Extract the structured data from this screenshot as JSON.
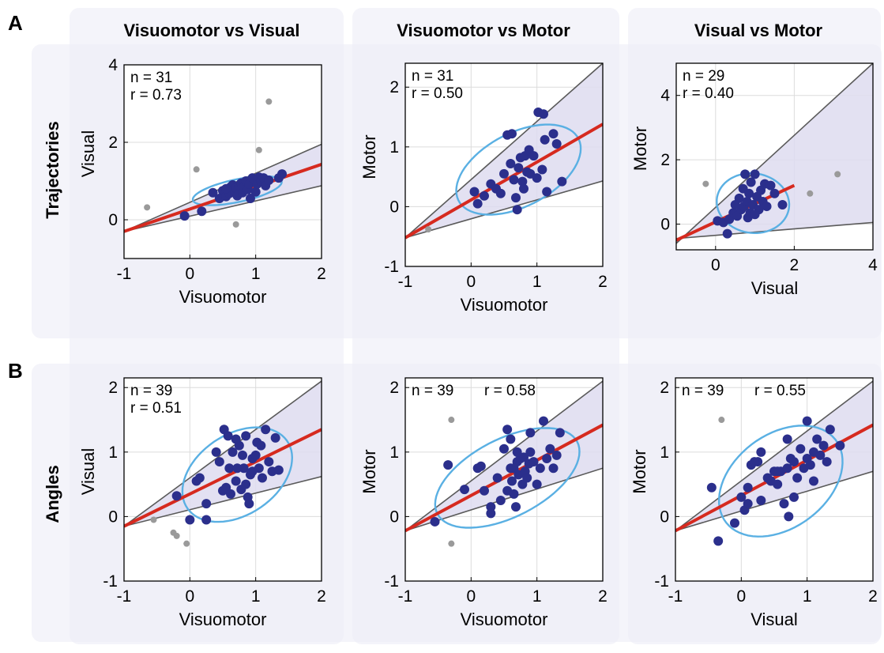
{
  "panels": [
    "A",
    "B"
  ],
  "columns": [
    "Visuomotor vs Visual",
    "Visuomotor vs Motor",
    "Visual vs Motor"
  ],
  "rows": [
    "Trajectories",
    "Angles"
  ],
  "colors": {
    "inlier": "#2b2f8c",
    "outlier": "#9a9a9a",
    "fit": "#d62a1f",
    "ellipse": "#5ab0e3",
    "wedge": "#dedcf0",
    "bound": "#5a5a5a",
    "grid": "#dcdcdc",
    "band": "#ecedf7"
  },
  "chart_data": [
    {
      "type": "scatter",
      "row": "Trajectories",
      "column": "Visuomotor vs Visual",
      "xlabel": "Visuomotor",
      "ylabel": "Visual",
      "xlim": [
        -1,
        2
      ],
      "ylim": [
        -1,
        4
      ],
      "xticks": [
        -1,
        0,
        1,
        2
      ],
      "yticks": [
        0,
        2,
        4
      ],
      "grid": true,
      "n": "n = 31",
      "r": "r = 0.73",
      "stat_layout": "two-line",
      "fit": {
        "x": [
          -1,
          2
        ],
        "y": [
          -0.3,
          1.43
        ]
      },
      "bounds": [
        {
          "x": [
            -1,
            2
          ],
          "y": [
            -0.3,
            1.95
          ]
        },
        {
          "x": [
            -1,
            2
          ],
          "y": [
            -0.3,
            0.88
          ]
        }
      ],
      "ellipse": {
        "cx": 0.72,
        "cy": 0.75,
        "rx": 0.72,
        "ry": 0.28,
        "angle_deg": 22
      },
      "inliers": [
        [
          -0.08,
          0.1
        ],
        [
          0.18,
          0.22
        ],
        [
          0.35,
          0.7
        ],
        [
          0.45,
          0.55
        ],
        [
          0.5,
          0.75
        ],
        [
          0.55,
          0.6
        ],
        [
          0.6,
          0.68
        ],
        [
          0.62,
          0.85
        ],
        [
          0.65,
          0.9
        ],
        [
          0.68,
          0.75
        ],
        [
          0.7,
          0.82
        ],
        [
          0.72,
          0.62
        ],
        [
          0.75,
          0.88
        ],
        [
          0.78,
          0.95
        ],
        [
          0.8,
          0.7
        ],
        [
          0.82,
          0.85
        ],
        [
          0.85,
          1.0
        ],
        [
          0.88,
          0.78
        ],
        [
          0.9,
          0.92
        ],
        [
          0.92,
          0.55
        ],
        [
          0.95,
          1.08
        ],
        [
          1.0,
          0.72
        ],
        [
          1.02,
          0.92
        ],
        [
          1.05,
          1.1
        ],
        [
          1.08,
          1.0
        ],
        [
          1.12,
          1.08
        ],
        [
          1.15,
          0.88
        ],
        [
          1.2,
          1.02
        ],
        [
          1.35,
          1.08
        ],
        [
          1.4,
          1.18
        ],
        [
          0.55,
          0.8
        ]
      ],
      "outliers": [
        [
          -0.65,
          0.32
        ],
        [
          0.1,
          1.3
        ],
        [
          0.7,
          -0.12
        ],
        [
          1.05,
          1.8
        ],
        [
          1.2,
          3.05
        ]
      ]
    },
    {
      "type": "scatter",
      "row": "Trajectories",
      "column": "Visuomotor vs Motor",
      "xlabel": "Visuomotor",
      "ylabel": "Motor",
      "xlim": [
        -1,
        2
      ],
      "ylim": [
        -1,
        2.4
      ],
      "xticks": [
        -1,
        0,
        1,
        2
      ],
      "yticks": [
        -1,
        0,
        1,
        2
      ],
      "grid": true,
      "n": "n = 31",
      "r": "r = 0.50",
      "stat_layout": "two-line",
      "fit": {
        "x": [
          -1,
          2
        ],
        "y": [
          -0.52,
          1.38
        ]
      },
      "bounds": [
        {
          "x": [
            -1,
            2
          ],
          "y": [
            -0.52,
            2.4
          ]
        },
        {
          "x": [
            -1,
            2
          ],
          "y": [
            -0.52,
            0.43
          ]
        }
      ],
      "ellipse": {
        "cx": 0.72,
        "cy": 0.62,
        "rx": 1.05,
        "ry": 0.6,
        "angle_deg": 32
      },
      "inliers": [
        [
          0.05,
          0.25
        ],
        [
          0.1,
          0.05
        ],
        [
          0.2,
          0.18
        ],
        [
          0.3,
          0.38
        ],
        [
          0.38,
          0.3
        ],
        [
          0.45,
          0.22
        ],
        [
          0.5,
          0.55
        ],
        [
          0.55,
          1.2
        ],
        [
          0.6,
          0.72
        ],
        [
          0.62,
          1.22
        ],
        [
          0.65,
          0.45
        ],
        [
          0.68,
          0.15
        ],
        [
          0.7,
          -0.05
        ],
        [
          0.72,
          0.65
        ],
        [
          0.75,
          0.82
        ],
        [
          0.78,
          0.42
        ],
        [
          0.8,
          0.3
        ],
        [
          0.82,
          0.85
        ],
        [
          0.85,
          0.58
        ],
        [
          0.88,
          0.95
        ],
        [
          0.9,
          0.55
        ],
        [
          0.95,
          0.85
        ],
        [
          1.0,
          0.48
        ],
        [
          1.02,
          1.58
        ],
        [
          1.08,
          0.62
        ],
        [
          1.1,
          1.55
        ],
        [
          1.15,
          0.25
        ],
        [
          1.25,
          1.22
        ],
        [
          1.3,
          1.05
        ],
        [
          1.38,
          0.42
        ],
        [
          1.12,
          1.12
        ]
      ],
      "outliers": [
        [
          -0.65,
          -0.38
        ]
      ]
    },
    {
      "type": "scatter",
      "row": "Trajectories",
      "column": "Visual vs Motor",
      "xlabel": "Visual",
      "ylabel": "Motor",
      "xlim": [
        -1,
        4
      ],
      "ylim": [
        -0.8,
        5
      ],
      "xticks": [
        0,
        2,
        4
      ],
      "yticks": [
        0,
        2,
        4
      ],
      "grid": true,
      "n": "n = 29",
      "r": "r = 0.40",
      "stat_layout": "two-line",
      "fit": {
        "x": [
          -1,
          2
        ],
        "y": [
          -0.5,
          1.2
        ]
      },
      "bounds": [
        {
          "x": [
            -1,
            4
          ],
          "y": [
            -0.6,
            5
          ]
        },
        {
          "x": [
            -1,
            4
          ],
          "y": [
            -0.45,
            0.05
          ]
        }
      ],
      "ellipse": {
        "cx": 0.95,
        "cy": 0.65,
        "rx": 0.9,
        "ry": 0.95,
        "angle_deg": 40
      },
      "inliers": [
        [
          0.05,
          0.1
        ],
        [
          0.2,
          0.05
        ],
        [
          0.3,
          -0.3
        ],
        [
          0.35,
          0.15
        ],
        [
          0.45,
          0.35
        ],
        [
          0.55,
          0.25
        ],
        [
          0.6,
          0.8
        ],
        [
          0.65,
          0.45
        ],
        [
          0.7,
          1.1
        ],
        [
          0.72,
          0.55
        ],
        [
          0.75,
          1.55
        ],
        [
          0.8,
          0.7
        ],
        [
          0.82,
          0.2
        ],
        [
          0.85,
          0.95
        ],
        [
          0.88,
          0.35
        ],
        [
          0.9,
          1.3
        ],
        [
          0.95,
          0.6
        ],
        [
          1.0,
          1.55
        ],
        [
          1.05,
          0.85
        ],
        [
          1.1,
          0.45
        ],
        [
          1.15,
          1.05
        ],
        [
          1.2,
          0.7
        ],
        [
          1.25,
          1.25
        ],
        [
          1.3,
          0.55
        ],
        [
          1.4,
          1.2
        ],
        [
          1.5,
          0.95
        ],
        [
          1.7,
          0.6
        ],
        [
          0.5,
          0.6
        ],
        [
          1.0,
          0.3
        ]
      ],
      "outliers": [
        [
          -0.25,
          1.25
        ],
        [
          2.4,
          0.95
        ],
        [
          3.1,
          1.55
        ]
      ]
    },
    {
      "type": "scatter",
      "row": "Angles",
      "column": "Visuomotor vs Visual",
      "xlabel": "Visuomotor",
      "ylabel": "Visual",
      "xlim": [
        -1,
        2
      ],
      "ylim": [
        -1,
        2.15
      ],
      "xticks": [
        -1,
        0,
        1,
        2
      ],
      "yticks": [
        -1,
        0,
        1,
        2
      ],
      "grid": true,
      "n": "n = 39",
      "r": "r = 0.51",
      "stat_layout": "two-line",
      "fit": {
        "x": [
          -1,
          2
        ],
        "y": [
          -0.15,
          1.35
        ]
      },
      "bounds": [
        {
          "x": [
            -1,
            2
          ],
          "y": [
            -0.15,
            2.1
          ]
        },
        {
          "x": [
            -1,
            2
          ],
          "y": [
            -0.15,
            0.62
          ]
        }
      ],
      "ellipse": {
        "cx": 0.72,
        "cy": 0.65,
        "rx": 0.92,
        "ry": 0.62,
        "angle_deg": 35
      },
      "inliers": [
        [
          -0.2,
          0.32
        ],
        [
          0.0,
          -0.05
        ],
        [
          0.1,
          0.55
        ],
        [
          0.15,
          0.6
        ],
        [
          0.25,
          -0.05
        ],
        [
          0.25,
          0.2
        ],
        [
          0.4,
          1.0
        ],
        [
          0.45,
          0.85
        ],
        [
          0.5,
          0.4
        ],
        [
          0.52,
          1.35
        ],
        [
          0.55,
          0.45
        ],
        [
          0.58,
          1.25
        ],
        [
          0.6,
          0.75
        ],
        [
          0.62,
          0.35
        ],
        [
          0.65,
          1.0
        ],
        [
          0.7,
          0.55
        ],
        [
          0.72,
          0.75
        ],
        [
          0.75,
          1.1
        ],
        [
          0.78,
          0.42
        ],
        [
          0.8,
          0.95
        ],
        [
          0.82,
          0.75
        ],
        [
          0.85,
          1.25
        ],
        [
          0.88,
          0.3
        ],
        [
          0.9,
          0.2
        ],
        [
          0.92,
          0.65
        ],
        [
          0.95,
          0.9
        ],
        [
          1.0,
          0.95
        ],
        [
          1.02,
          1.15
        ],
        [
          1.05,
          0.75
        ],
        [
          1.08,
          1.1
        ],
        [
          1.1,
          0.6
        ],
        [
          1.15,
          1.35
        ],
        [
          1.2,
          0.85
        ],
        [
          1.25,
          0.7
        ],
        [
          1.3,
          1.22
        ],
        [
          1.35,
          0.72
        ],
        [
          0.7,
          1.2
        ],
        [
          0.85,
          0.5
        ],
        [
          0.95,
          0.7
        ]
      ],
      "outliers": [
        [
          -0.55,
          -0.05
        ],
        [
          -0.25,
          -0.25
        ],
        [
          -0.2,
          -0.3
        ],
        [
          -0.05,
          -0.42
        ]
      ]
    },
    {
      "type": "scatter",
      "row": "Angles",
      "column": "Visuomotor vs Motor",
      "xlabel": "Visuomotor",
      "ylabel": "Motor",
      "xlim": [
        -1,
        2
      ],
      "ylim": [
        -1,
        2.15
      ],
      "xticks": [
        -1,
        0,
        1,
        2
      ],
      "yticks": [
        -1,
        0,
        1,
        2
      ],
      "grid": true,
      "n": "n = 39",
      "r": "r = 0.58",
      "stat_layout": "one-line",
      "fit": {
        "x": [
          -1,
          2
        ],
        "y": [
          -0.22,
          1.42
        ]
      },
      "bounds": [
        {
          "x": [
            -1,
            2
          ],
          "y": [
            -0.22,
            2.1
          ]
        },
        {
          "x": [
            -1,
            2
          ],
          "y": [
            -0.22,
            0.75
          ]
        }
      ],
      "ellipse": {
        "cx": 0.55,
        "cy": 0.6,
        "rx": 1.2,
        "ry": 0.6,
        "angle_deg": 28
      },
      "inliers": [
        [
          -0.55,
          -0.08
        ],
        [
          -0.35,
          0.8
        ],
        [
          -0.1,
          0.42
        ],
        [
          0.1,
          0.75
        ],
        [
          0.15,
          0.78
        ],
        [
          0.3,
          0.15
        ],
        [
          0.3,
          0.05
        ],
        [
          0.4,
          0.6
        ],
        [
          0.5,
          1.05
        ],
        [
          0.55,
          0.4
        ],
        [
          0.6,
          0.75
        ],
        [
          0.62,
          0.55
        ],
        [
          0.65,
          0.35
        ],
        [
          0.68,
          0.15
        ],
        [
          0.7,
          0.85
        ],
        [
          0.72,
          0.65
        ],
        [
          0.75,
          0.9
        ],
        [
          0.78,
          0.5
        ],
        [
          0.8,
          0.92
        ],
        [
          0.82,
          0.7
        ],
        [
          0.85,
          0.6
        ],
        [
          0.88,
          0.82
        ],
        [
          0.9,
          1.0
        ],
        [
          0.95,
          0.85
        ],
        [
          1.0,
          0.5
        ],
        [
          1.05,
          0.75
        ],
        [
          1.1,
          1.48
        ],
        [
          1.15,
          0.9
        ],
        [
          1.2,
          1.05
        ],
        [
          1.3,
          0.95
        ],
        [
          1.35,
          1.3
        ],
        [
          0.55,
          1.35
        ],
        [
          0.45,
          0.25
        ],
        [
          0.7,
          1.0
        ],
        [
          0.6,
          1.2
        ],
        [
          0.65,
          0.75
        ],
        [
          0.9,
          1.3
        ],
        [
          1.25,
          0.75
        ],
        [
          0.2,
          0.4
        ]
      ],
      "outliers": [
        [
          -0.3,
          1.5
        ],
        [
          -0.3,
          -0.42
        ]
      ]
    },
    {
      "type": "scatter",
      "row": "Angles",
      "column": "Visual vs Motor",
      "xlabel": "Visual",
      "ylabel": "Motor",
      "xlim": [
        -1,
        2
      ],
      "ylim": [
        -1,
        2.15
      ],
      "xticks": [
        -1,
        0,
        1,
        2
      ],
      "yticks": [
        -1,
        0,
        1,
        2
      ],
      "grid": true,
      "n": "n = 39",
      "r": "r = 0.55",
      "stat_layout": "one-line",
      "fit": {
        "x": [
          -1,
          2
        ],
        "y": [
          -0.22,
          1.42
        ]
      },
      "bounds": [
        {
          "x": [
            -1,
            2
          ],
          "y": [
            -0.22,
            2.1
          ]
        },
        {
          "x": [
            -1,
            2
          ],
          "y": [
            -0.22,
            0.7
          ]
        }
      ],
      "ellipse": {
        "cx": 0.6,
        "cy": 0.55,
        "rx": 1.05,
        "ry": 0.72,
        "angle_deg": 38
      },
      "inliers": [
        [
          -0.45,
          0.45
        ],
        [
          -0.1,
          -0.1
        ],
        [
          0.0,
          0.3
        ],
        [
          0.05,
          0.1
        ],
        [
          0.1,
          0.45
        ],
        [
          0.1,
          0.2
        ],
        [
          0.15,
          0.8
        ],
        [
          0.25,
          0.85
        ],
        [
          0.3,
          0.25
        ],
        [
          0.4,
          0.6
        ],
        [
          0.45,
          0.55
        ],
        [
          0.5,
          0.7
        ],
        [
          0.55,
          0.5
        ],
        [
          0.6,
          0.7
        ],
        [
          0.65,
          0.2
        ],
        [
          0.7,
          0.75
        ],
        [
          0.72,
          0.0
        ],
        [
          0.75,
          0.9
        ],
        [
          0.8,
          0.85
        ],
        [
          0.85,
          0.6
        ],
        [
          0.9,
          1.05
        ],
        [
          0.95,
          0.75
        ],
        [
          1.0,
          0.9
        ],
        [
          1.05,
          0.8
        ],
        [
          1.1,
          0.55
        ],
        [
          1.15,
          1.2
        ],
        [
          1.2,
          0.95
        ],
        [
          1.25,
          1.1
        ],
        [
          1.3,
          0.85
        ],
        [
          1.35,
          1.35
        ],
        [
          1.5,
          1.1
        ],
        [
          -0.35,
          -0.38
        ],
        [
          0.55,
          0.7
        ],
        [
          1.0,
          1.48
        ],
        [
          0.3,
          1.0
        ],
        [
          0.7,
          1.2
        ],
        [
          0.2,
          0.85
        ],
        [
          0.8,
          0.3
        ],
        [
          1.1,
          1.0
        ]
      ],
      "outliers": [
        [
          -0.3,
          1.5
        ]
      ]
    }
  ]
}
